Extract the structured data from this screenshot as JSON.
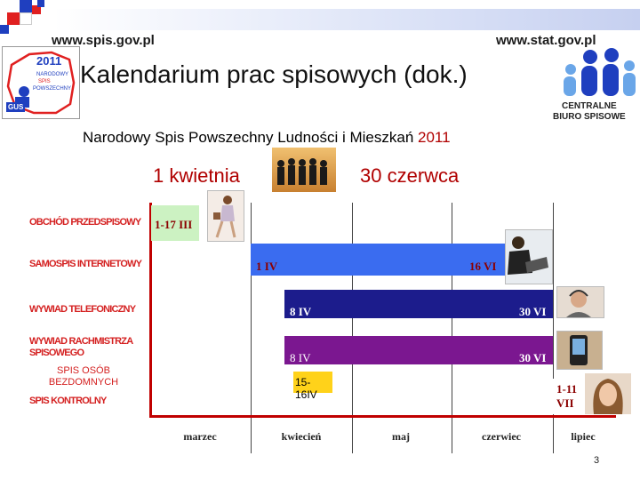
{
  "header": {
    "url_left": "www.spis.gov.pl",
    "url_right": "www.stat.gov.pl",
    "title": "Kalendarium prac spisowych (dok.)",
    "logo_left": {
      "year": "2011",
      "line1": "NARODOWY",
      "line2": "SPIS",
      "line3": "POWSZECHNY",
      "badge": "GUS"
    },
    "logo_right": {
      "line1": "CENTRALNE",
      "line2": "BIURO SPISOWE"
    }
  },
  "subtitle": {
    "text": "Narodowy Spis Powszechny Ludności i Mieszkań ",
    "year": "2011"
  },
  "dates": {
    "start": "1 kwietnia",
    "end": "30 czerwca"
  },
  "rows": [
    {
      "label": "OBCHÓD PRZEDSPISOWY"
    },
    {
      "label": "SAMOSPIS INTERNETOWY"
    },
    {
      "label": "WYWIAD TELEFONICZNY"
    },
    {
      "label": "WYWIAD RACHMISTRZA SPISOWEGO"
    },
    {
      "label": "SPIS OSÓB BEZDOMNYCH"
    },
    {
      "label": "SPIS KONTROLNY"
    }
  ],
  "bars": [
    {
      "start_label": "1-17 III",
      "end_label": "",
      "color": "#ccf2c2"
    },
    {
      "start_label": "1 IV",
      "end_label": "16 VI",
      "color": "#3a6cf0"
    },
    {
      "start_label": "8 IV",
      "end_label": "30 VI",
      "color": "#1c1c8c"
    },
    {
      "start_label": "8 IV",
      "end_label": "30 VI",
      "color": "#7b1790"
    },
    {
      "start_label": "15-16IV",
      "end_label": "",
      "color": "#ffd21a"
    },
    {
      "start_label": "1-11 VII",
      "end_label": "",
      "color": "#ffffff"
    }
  ],
  "months": [
    "marzec",
    "kwiecień",
    "maj",
    "czerwiec",
    "lipiec"
  ],
  "page_number": "3",
  "accent": {
    "red": "#b00000",
    "label_red": "#d42020"
  }
}
